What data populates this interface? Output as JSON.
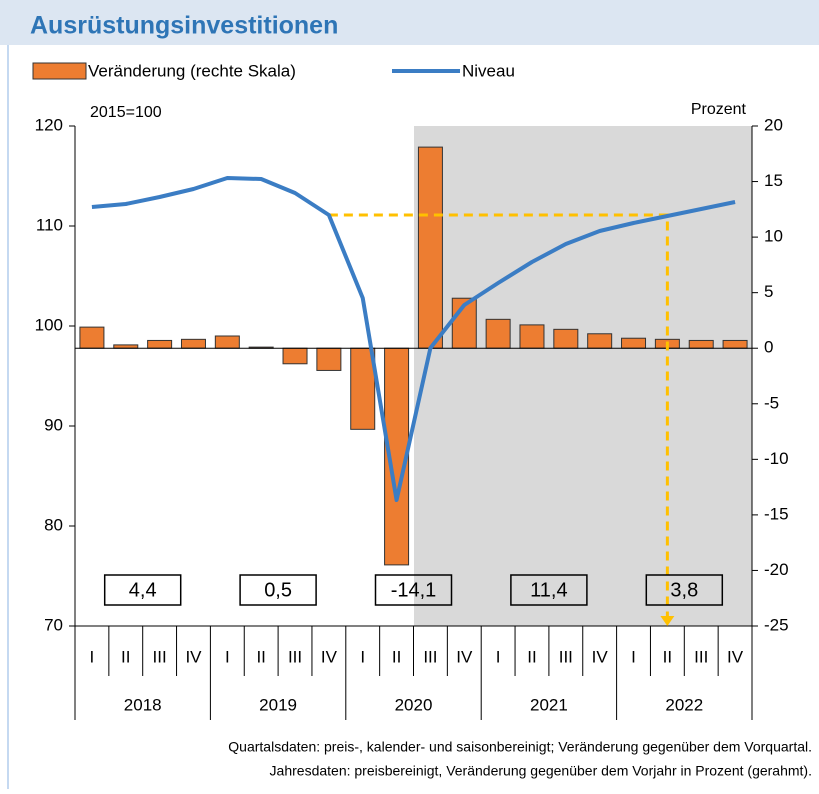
{
  "chart_data": {
    "type": "bar-line",
    "title": "Ausrüstungsinvestitionen",
    "ylabel": "2015=100",
    "y2label": "Prozent",
    "categories": [
      "I",
      "II",
      "III",
      "IV",
      "I",
      "II",
      "III",
      "IV",
      "I",
      "II",
      "III",
      "IV",
      "I",
      "II",
      "III",
      "IV",
      "I",
      "II",
      "III",
      "IV"
    ],
    "years": [
      "2018",
      "2019",
      "2020",
      "2021",
      "2022"
    ],
    "series": [
      {
        "name": "Veränderung (rechte Skala)",
        "type": "bar",
        "axis": "y2",
        "color": "#ed7d31",
        "values": [
          1.9,
          0.3,
          0.7,
          0.8,
          1.1,
          0.1,
          -1.4,
          -2.0,
          -7.3,
          -19.5,
          18.1,
          4.5,
          2.6,
          2.1,
          1.7,
          1.3,
          0.9,
          0.8,
          0.7,
          0.7
        ]
      },
      {
        "name": "Niveau",
        "type": "line",
        "axis": "y",
        "color": "#3b7dc4",
        "values": [
          111.9,
          112.2,
          112.9,
          113.7,
          114.8,
          114.7,
          113.3,
          111.1,
          102.8,
          82.6,
          97.8,
          102.1,
          104.3,
          106.4,
          108.2,
          109.5,
          110.3,
          111.0,
          111.7,
          112.4
        ]
      }
    ],
    "annual_changes": [
      "4,4",
      "0,5",
      "-14,1",
      "11,4",
      "3,8"
    ],
    "ylim": [
      70,
      120
    ],
    "yticks": [
      70,
      80,
      90,
      100,
      110,
      120
    ],
    "y2lim": [
      -25,
      20
    ],
    "y2ticks": [
      -25,
      -20,
      -15,
      -10,
      -5,
      0,
      5,
      10,
      15,
      20
    ],
    "footnotes": [
      "Quartalsdaten: preis-, kalender- und saisonbereinigt; Veränderung gegenüber dem Vorquartal.",
      "Jahresdaten: preisbereinigt, Veränderung gegenüber dem Vorjahr in Prozent (gerahmt)."
    ]
  }
}
